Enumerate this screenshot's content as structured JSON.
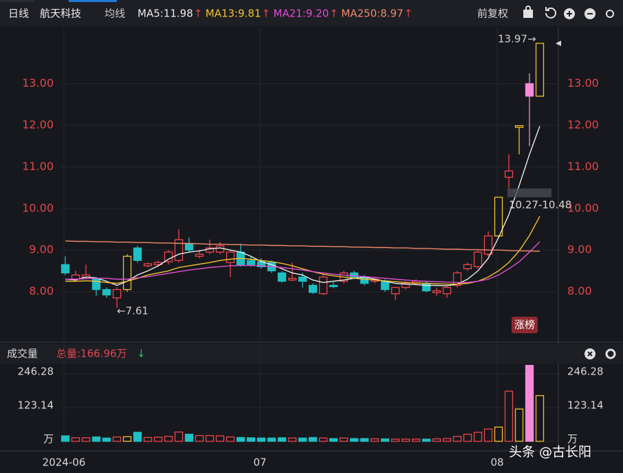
{
  "header": {
    "period": "日线",
    "stock": "航天科技",
    "ma_label": "均线",
    "adjust": "前复权"
  },
  "chart_data": [
    {
      "type": "candlestick",
      "categories": [
        "2024-06",
        null,
        null,
        null,
        null,
        null,
        null,
        null,
        null,
        null,
        null,
        null,
        null,
        null,
        null,
        null,
        null,
        null,
        null,
        "07",
        null,
        null,
        null,
        null,
        null,
        null,
        null,
        null,
        null,
        null,
        null,
        null,
        null,
        null,
        null,
        null,
        null,
        null,
        null,
        null,
        null,
        null,
        "08",
        null,
        null,
        null,
        null
      ],
      "open": [
        8.65,
        8.3,
        8.35,
        8.3,
        8.05,
        7.85,
        8.05,
        9.05,
        8.62,
        8.65,
        8.72,
        8.75,
        9.15,
        8.85,
        8.95,
        8.95,
        8.7,
        8.95,
        8.75,
        8.72,
        8.7,
        8.45,
        8.28,
        8.35,
        8.15,
        7.95,
        8.15,
        8.25,
        8.45,
        8.35,
        8.25,
        8.25,
        7.95,
        8.1,
        8.2,
        8.2,
        7.98,
        7.95,
        8.15,
        8.55,
        8.6,
        8.9,
        9.34,
        10.75,
        11.95,
        13.0,
        12.7
      ],
      "high": [
        8.85,
        8.5,
        8.65,
        8.35,
        8.1,
        8.1,
        8.9,
        9.1,
        8.7,
        8.75,
        9.0,
        9.5,
        9.3,
        9.0,
        9.25,
        9.2,
        9.0,
        9.15,
        8.85,
        8.8,
        8.75,
        8.5,
        8.7,
        8.45,
        8.2,
        8.4,
        8.22,
        8.5,
        8.5,
        8.4,
        8.35,
        8.3,
        8.12,
        8.25,
        8.3,
        8.25,
        8.1,
        8.12,
        8.5,
        8.7,
        9.0,
        9.45,
        10.27,
        11.3,
        12.0,
        13.25,
        13.97
      ],
      "low": [
        8.4,
        8.25,
        8.3,
        7.9,
        7.85,
        7.61,
        8.0,
        8.7,
        8.58,
        8.6,
        8.65,
        8.7,
        8.95,
        8.8,
        8.9,
        8.9,
        8.35,
        8.6,
        8.6,
        8.55,
        8.45,
        8.22,
        8.25,
        8.1,
        7.95,
        7.92,
        8.08,
        8.2,
        8.3,
        8.15,
        8.2,
        8.0,
        7.8,
        8.05,
        8.15,
        7.98,
        7.9,
        7.85,
        8.1,
        8.5,
        8.55,
        8.85,
        9.3,
        10.48,
        11.3,
        11.5,
        12.7
      ],
      "close": [
        8.45,
        8.4,
        8.4,
        8.05,
        7.92,
        8.05,
        8.85,
        8.75,
        8.67,
        8.7,
        8.95,
        9.25,
        9.0,
        8.9,
        9.05,
        9.1,
        8.95,
        8.65,
        8.65,
        8.6,
        8.5,
        8.25,
        8.32,
        8.25,
        7.98,
        8.35,
        8.12,
        8.45,
        8.35,
        8.2,
        8.3,
        8.05,
        8.1,
        8.2,
        8.25,
        8.02,
        8.02,
        8.1,
        8.45,
        8.65,
        8.95,
        9.34,
        10.27,
        10.9,
        11.99,
        12.7,
        13.97
      ],
      "colors": [
        "#1fbfc4",
        "#f0444b",
        "#f0444b",
        "#1fbfc4",
        "#1fbfc4",
        "#f0444b",
        "#f2c230",
        "#1fbfc4",
        "#f0444b",
        "#f0444b",
        "#f0444b",
        "#f0444b",
        "#1fbfc4",
        "#f0444b",
        "#f0444b",
        "#f0444b",
        "#f0444b",
        "#1fbfc4",
        "#1fbfc4",
        "#1fbfc4",
        "#1fbfc4",
        "#1fbfc4",
        "#f0444b",
        "#1fbfc4",
        "#1fbfc4",
        "#f0444b",
        "#1fbfc4",
        "#f0444b",
        "#1fbfc4",
        "#1fbfc4",
        "#f0444b",
        "#1fbfc4",
        "#f0444b",
        "#f0444b",
        "#f0444b",
        "#1fbfc4",
        "#f0444b",
        "#f0444b",
        "#f0444b",
        "#f0444b",
        "#f0444b",
        "#f0444b",
        "#f2c230",
        "#f0444b",
        "#f2c230",
        "#f58ad8",
        "#f2c230"
      ],
      "ylim": [
        6.95,
        14.35
      ],
      "yticks": [
        {
          "value": 8,
          "label": "8.00"
        },
        {
          "value": 9,
          "label": "9.00"
        },
        {
          "value": 10,
          "label": "10.00"
        },
        {
          "value": 11,
          "label": "11.00"
        },
        {
          "value": 12,
          "label": "12.00"
        },
        {
          "value": 13,
          "label": "13.00"
        }
      ],
      "series": [
        {
          "name": "MA5:11.98",
          "arrow": "↑",
          "color": "#ececec",
          "values": [
            8.3,
            8.28,
            8.35,
            8.33,
            8.25,
            8.15,
            8.25,
            8.4,
            8.5,
            8.62,
            8.78,
            8.9,
            8.95,
            8.98,
            9.03,
            9.05,
            9.0,
            8.95,
            8.85,
            8.72,
            8.65,
            8.55,
            8.45,
            8.4,
            8.28,
            8.22,
            8.25,
            8.28,
            8.32,
            8.35,
            8.3,
            8.25,
            8.2,
            8.18,
            8.17,
            8.15,
            8.15,
            8.14,
            8.18,
            8.3,
            8.5,
            8.8,
            9.3,
            9.85,
            10.55,
            11.3,
            11.98
          ]
        },
        {
          "name": "MA13:9.81",
          "arrow": "↑",
          "color": "#f2c230",
          "values": [
            8.25,
            8.25,
            8.26,
            8.25,
            8.22,
            8.2,
            8.25,
            8.32,
            8.4,
            8.45,
            8.5,
            8.58,
            8.62,
            8.66,
            8.7,
            8.75,
            8.78,
            8.8,
            8.78,
            8.75,
            8.72,
            8.68,
            8.62,
            8.55,
            8.48,
            8.42,
            8.38,
            8.35,
            8.32,
            8.3,
            8.28,
            8.26,
            8.24,
            8.22,
            8.21,
            8.2,
            8.19,
            8.18,
            8.18,
            8.2,
            8.25,
            8.35,
            8.5,
            8.7,
            8.98,
            9.35,
            9.81
          ]
        },
        {
          "name": "MA21:9.20",
          "arrow": "↑",
          "color": "#e04fd0",
          "values": [
            8.3,
            8.3,
            8.31,
            8.32,
            8.32,
            8.3,
            8.3,
            8.33,
            8.36,
            8.4,
            8.44,
            8.48,
            8.52,
            8.55,
            8.58,
            8.6,
            8.62,
            8.63,
            8.63,
            8.62,
            8.6,
            8.58,
            8.55,
            8.52,
            8.48,
            8.45,
            8.42,
            8.4,
            8.38,
            8.36,
            8.34,
            8.32,
            8.3,
            8.28,
            8.26,
            8.25,
            8.24,
            8.23,
            8.22,
            8.22,
            8.25,
            8.3,
            8.4,
            8.55,
            8.72,
            8.95,
            9.2
          ]
        },
        {
          "name": "MA250:8.97",
          "arrow": "↑",
          "color": "#f08a6c",
          "values": [
            9.22,
            9.21,
            9.21,
            9.2,
            9.2,
            9.19,
            9.19,
            9.18,
            9.18,
            9.17,
            9.17,
            9.16,
            9.16,
            9.15,
            9.14,
            9.14,
            9.13,
            9.13,
            9.12,
            9.12,
            9.11,
            9.11,
            9.1,
            9.1,
            9.09,
            9.09,
            9.08,
            9.08,
            9.07,
            9.07,
            9.06,
            9.06,
            9.05,
            9.05,
            9.04,
            9.04,
            9.03,
            9.02,
            9.02,
            9.01,
            9.01,
            9.0,
            9.0,
            8.99,
            8.98,
            8.98,
            8.97
          ]
        }
      ],
      "annotations": {
        "low": "←7.61",
        "high": "13.97→",
        "gap": "10.27-10.48",
        "badge": "涨榜"
      }
    },
    {
      "type": "bar",
      "title": "成交量",
      "subtitle": "总量:166.96万",
      "subtitle_arrow": "↓",
      "values": [
        20,
        13,
        13,
        16,
        12,
        16,
        17,
        33,
        14,
        15,
        18,
        34,
        26,
        21,
        21,
        20,
        16,
        14,
        13,
        12,
        12,
        13,
        12,
        12,
        14,
        12,
        10,
        12,
        10,
        10,
        9,
        9,
        8,
        8,
        8,
        8,
        9,
        10,
        18,
        26,
        33,
        45,
        52,
        183,
        118,
        290,
        166.96
      ],
      "ylim": [
        0,
        279
      ],
      "yticks": [
        {
          "value": 0,
          "label": "万"
        },
        123.14,
        246.28
      ]
    }
  ],
  "watermark": "头条 @古长阳"
}
